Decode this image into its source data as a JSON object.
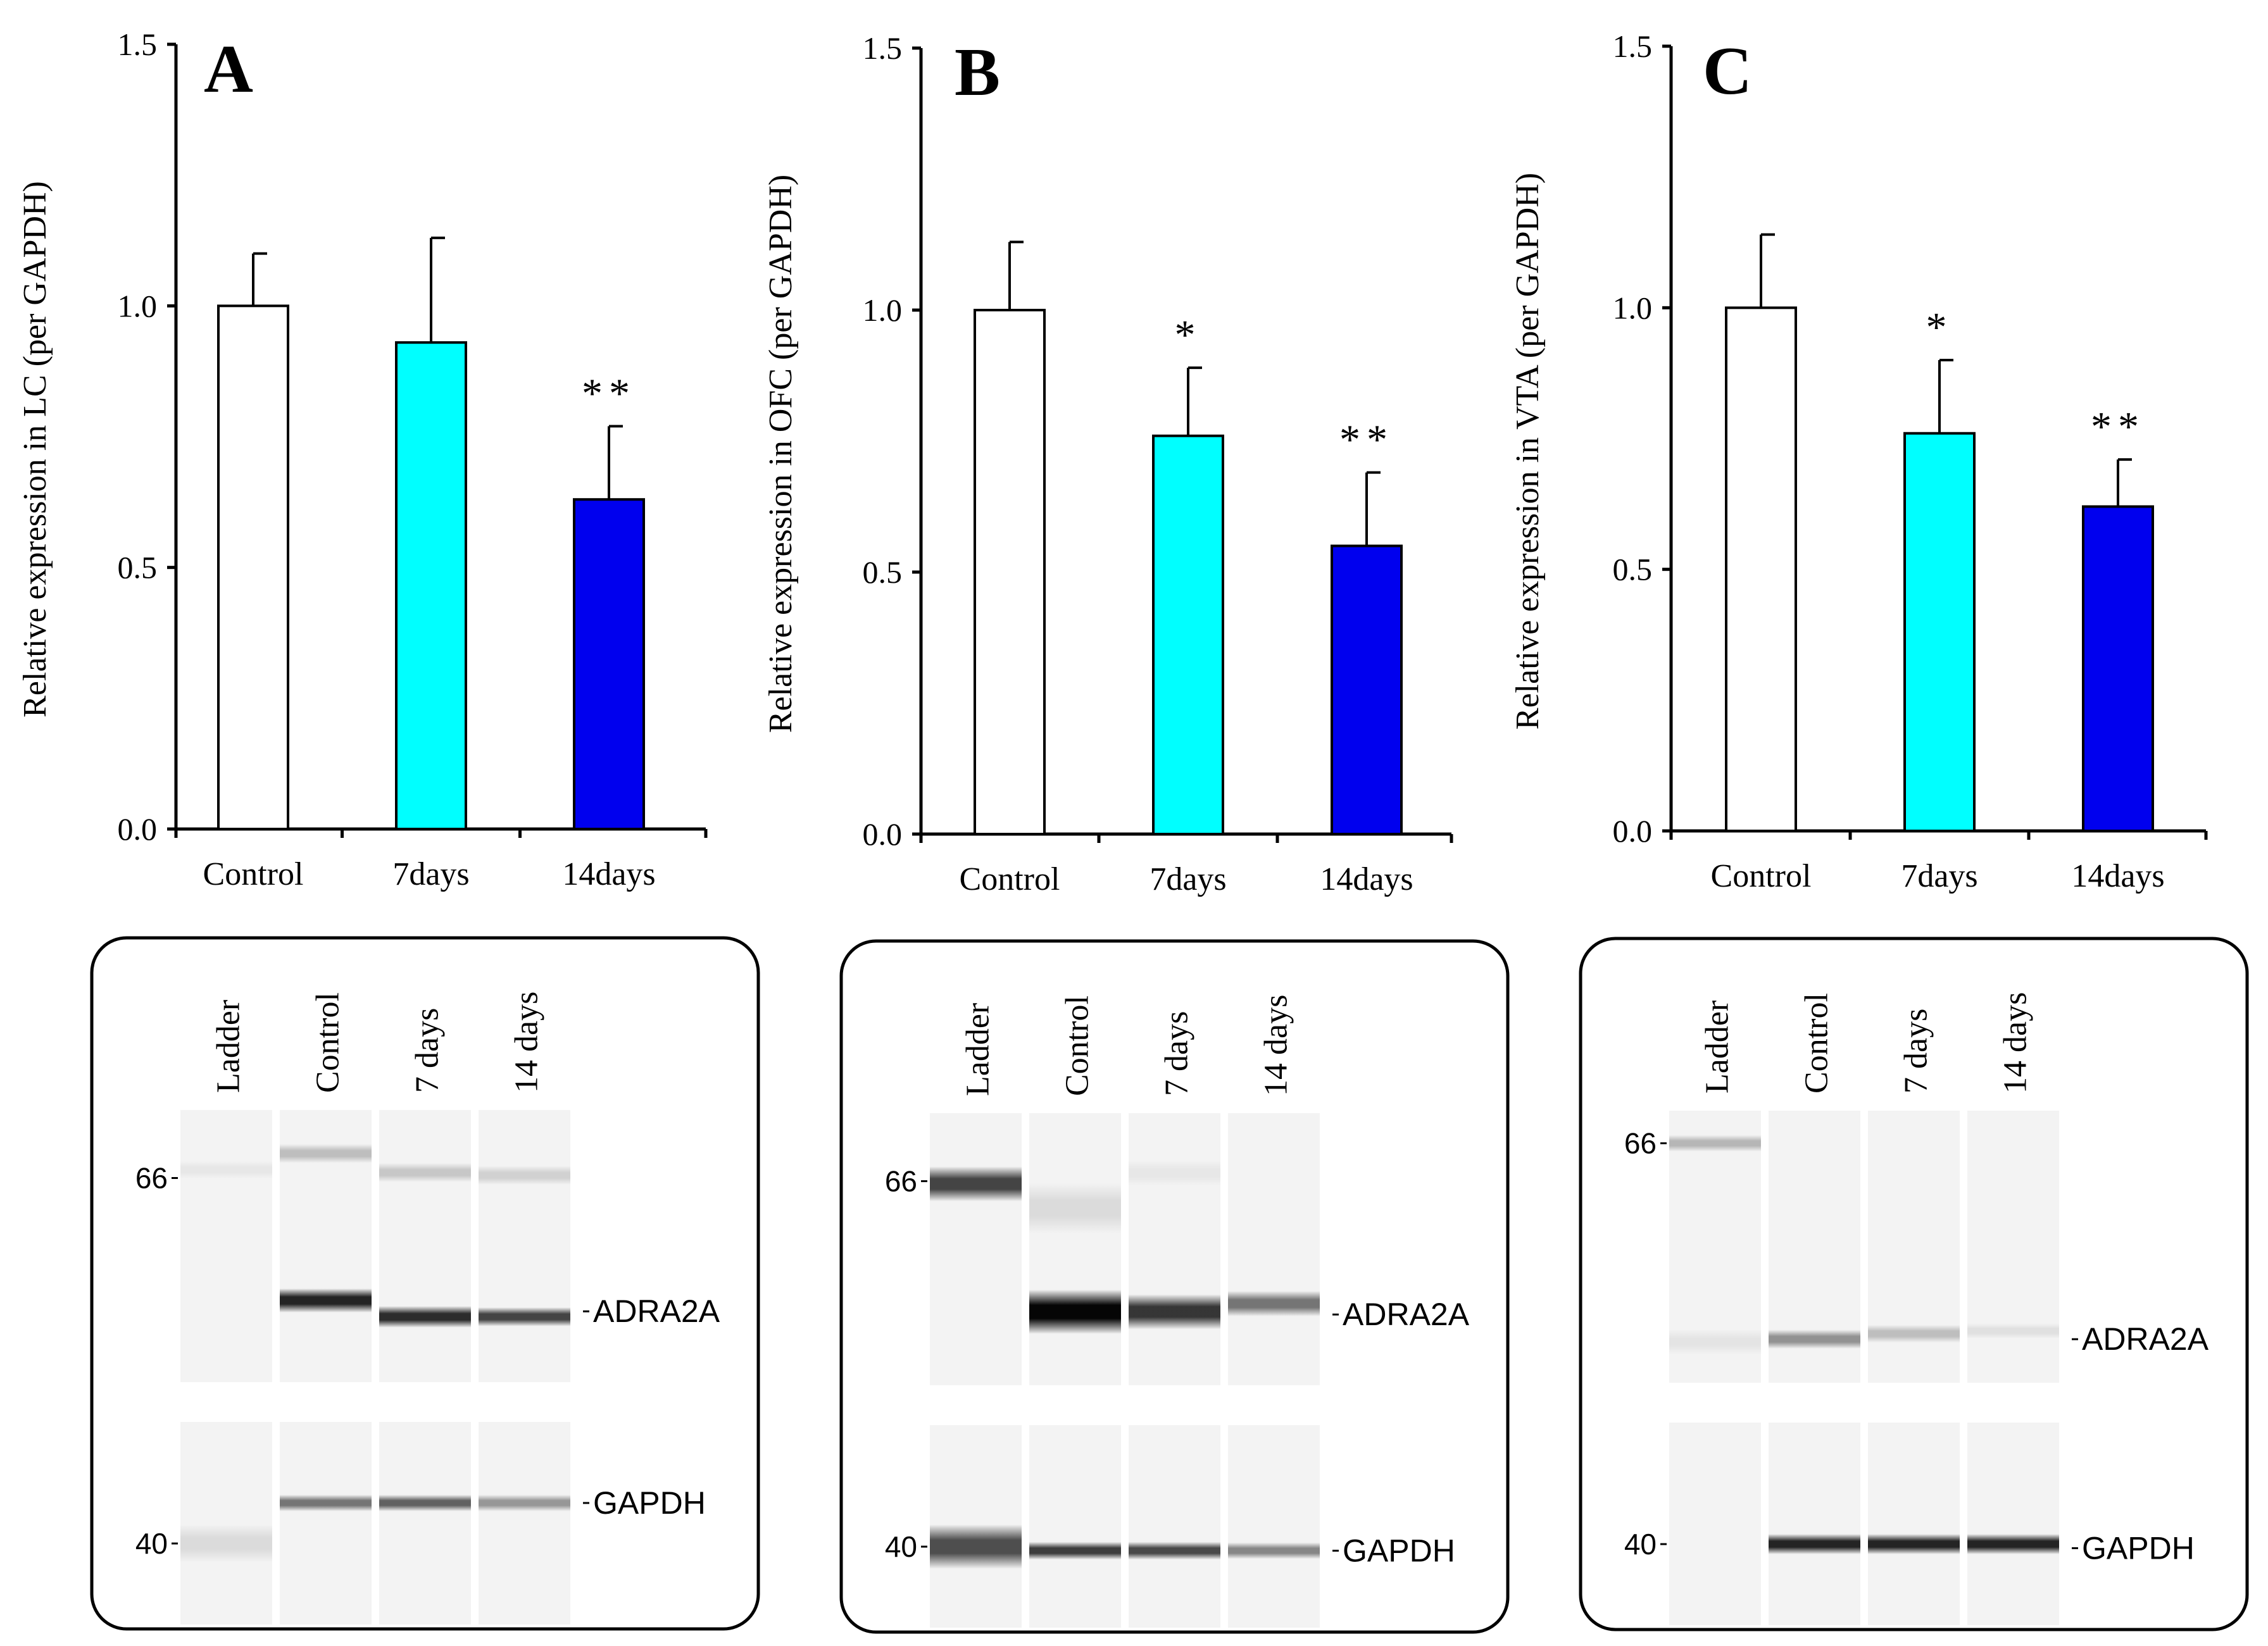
{
  "chart_data": [
    {
      "type": "bar",
      "panel_letter": "A",
      "ylabel": "Relative expression in LC (per GAPDH)",
      "ylim": [
        0,
        1.5
      ],
      "yticks": [
        "0.0",
        "0.5",
        "1.0",
        "1.5"
      ],
      "categories": [
        "Control",
        "7days",
        "14days"
      ],
      "values": [
        1.0,
        0.93,
        0.63
      ],
      "errors": [
        0.1,
        0.2,
        0.14
      ],
      "significance": [
        "",
        "",
        "**"
      ],
      "colors": [
        "#ffffff",
        "#00ffff",
        "#0000ee"
      ],
      "blot": {
        "lane_labels": [
          "Ladder",
          "Control",
          "7 days",
          "14 days"
        ],
        "marker_labels": [
          "66",
          "40"
        ],
        "band_labels": [
          "ADRA2A",
          "GAPDH"
        ]
      }
    },
    {
      "type": "bar",
      "panel_letter": "B",
      "ylabel": "Relative expression in OFC (per GAPDH)",
      "ylim": [
        0,
        1.5
      ],
      "yticks": [
        "0.0",
        "0.5",
        "1.0",
        "1.5"
      ],
      "categories": [
        "Control",
        "7days",
        "14days"
      ],
      "values": [
        1.0,
        0.76,
        0.55
      ],
      "errors": [
        0.13,
        0.13,
        0.14
      ],
      "significance": [
        "",
        "*",
        "**"
      ],
      "colors": [
        "#ffffff",
        "#00ffff",
        "#0000ee"
      ],
      "blot": {
        "lane_labels": [
          "Ladder",
          "Control",
          "7 days",
          "14 days"
        ],
        "marker_labels": [
          "66",
          "40"
        ],
        "band_labels": [
          "ADRA2A",
          "GAPDH"
        ]
      }
    },
    {
      "type": "bar",
      "panel_letter": "C",
      "ylabel": "Relative expression in VTA (per GAPDH)",
      "ylim": [
        0,
        1.5
      ],
      "yticks": [
        "0.0",
        "0.5",
        "1.0",
        "1.5"
      ],
      "categories": [
        "Control",
        "7days",
        "14days"
      ],
      "values": [
        1.0,
        0.76,
        0.62
      ],
      "errors": [
        0.14,
        0.14,
        0.09
      ],
      "significance": [
        "",
        "*",
        "**"
      ],
      "colors": [
        "#ffffff",
        "#00ffff",
        "#0000ee"
      ],
      "blot": {
        "lane_labels": [
          "Ladder",
          "Control",
          "7 days",
          "14 days"
        ],
        "marker_labels": [
          "66",
          "40"
        ],
        "band_labels": [
          "ADRA2A",
          "GAPDH"
        ]
      }
    }
  ]
}
